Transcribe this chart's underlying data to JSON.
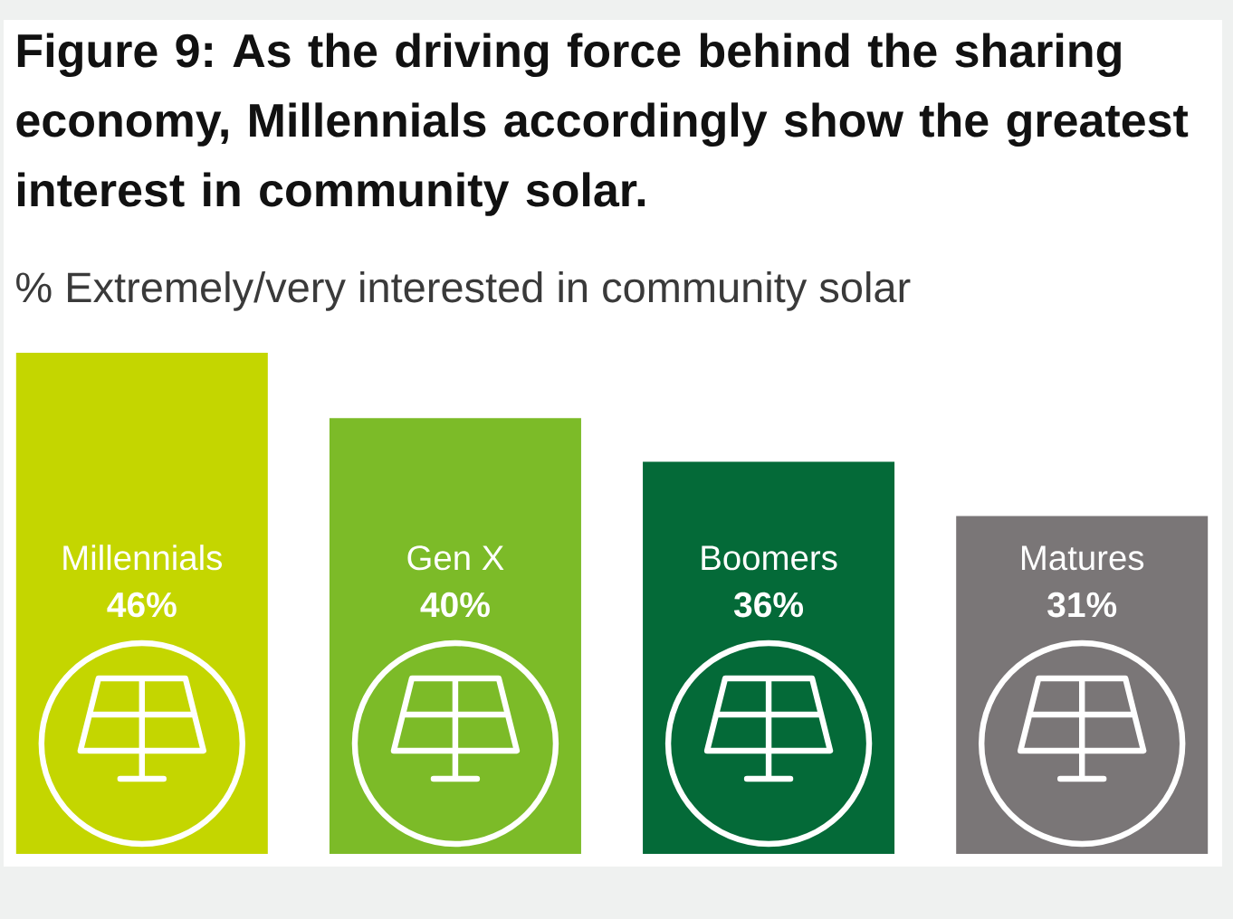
{
  "chart_data": {
    "type": "bar",
    "title": "Figure 9: As the driving force behind the sharing economy, Millennials accordingly show the greatest interest in community solar.",
    "subtitle": "% Extremely/very interested in community solar",
    "categories": [
      "Millennials",
      "Gen X",
      "Boomers",
      "Matures"
    ],
    "values": [
      46,
      40,
      36,
      31
    ],
    "colors": [
      "#c4d600",
      "#7cbb28",
      "#046a38",
      "#7a7677"
    ],
    "value_labels": [
      "46%",
      "40%",
      "36%",
      "31%"
    ]
  }
}
